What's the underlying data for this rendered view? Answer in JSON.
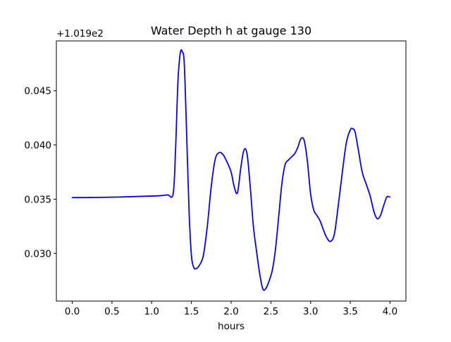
{
  "chart_data": {
    "type": "line",
    "title": "Water Depth h at gauge 130",
    "xlabel": "hours",
    "ylabel": "",
    "y_offset_text": "+1.019e2",
    "xlim": [
      -0.2,
      4.2
    ],
    "ylim": [
      0.0256,
      0.0496
    ],
    "x_ticks": [
      0.0,
      0.5,
      1.0,
      1.5,
      2.0,
      2.5,
      3.0,
      3.5,
      4.0
    ],
    "x_tick_labels": [
      "0.0",
      "0.5",
      "1.0",
      "1.5",
      "2.0",
      "2.5",
      "3.0",
      "3.5",
      "4.0"
    ],
    "y_ticks": [
      0.03,
      0.035,
      0.04,
      0.045
    ],
    "y_tick_labels": [
      "0.030",
      "0.035",
      "0.040",
      "0.045"
    ],
    "grid": false,
    "legend": "none",
    "series": [
      {
        "color": "#0000ff",
        "x": [
          0.0,
          0.3,
          0.6,
          0.9,
          1.1,
          1.2,
          1.27,
          1.3,
          1.33,
          1.36,
          1.385,
          1.41,
          1.44,
          1.47,
          1.5,
          1.53,
          1.56,
          1.6,
          1.65,
          1.7,
          1.75,
          1.8,
          1.85,
          1.9,
          1.95,
          2.0,
          2.04,
          2.08,
          2.12,
          2.16,
          2.2,
          2.24,
          2.28,
          2.32,
          2.36,
          2.4,
          2.44,
          2.48,
          2.52,
          2.56,
          2.6,
          2.64,
          2.68,
          2.72,
          2.76,
          2.8,
          2.84,
          2.88,
          2.92,
          2.96,
          3.0,
          3.04,
          3.08,
          3.12,
          3.16,
          3.2,
          3.25,
          3.3,
          3.35,
          3.4,
          3.45,
          3.5,
          3.53,
          3.56,
          3.6,
          3.65,
          3.7,
          3.75,
          3.8,
          3.84,
          3.88,
          3.92,
          3.96,
          4.0
        ],
        "y": [
          0.03515,
          0.03516,
          0.0352,
          0.03527,
          0.03532,
          0.0354,
          0.0355,
          0.0395,
          0.0458,
          0.0485,
          0.0486,
          0.0475,
          0.041,
          0.034,
          0.0298,
          0.0287,
          0.0286,
          0.0289,
          0.0298,
          0.0325,
          0.0362,
          0.0387,
          0.0393,
          0.0391,
          0.0384,
          0.0375,
          0.0361,
          0.0356,
          0.0378,
          0.0395,
          0.0392,
          0.0362,
          0.0325,
          0.0302,
          0.0281,
          0.0267,
          0.0268,
          0.0275,
          0.0285,
          0.0305,
          0.0335,
          0.0365,
          0.0382,
          0.0386,
          0.0389,
          0.0392,
          0.0398,
          0.0406,
          0.0404,
          0.0385,
          0.0355,
          0.034,
          0.0335,
          0.033,
          0.0322,
          0.0315,
          0.0311,
          0.0318,
          0.0345,
          0.0375,
          0.0402,
          0.0414,
          0.0415,
          0.0412,
          0.0396,
          0.0375,
          0.0364,
          0.0353,
          0.0338,
          0.0332,
          0.0335,
          0.0344,
          0.0352,
          0.0352
        ]
      }
    ]
  }
}
